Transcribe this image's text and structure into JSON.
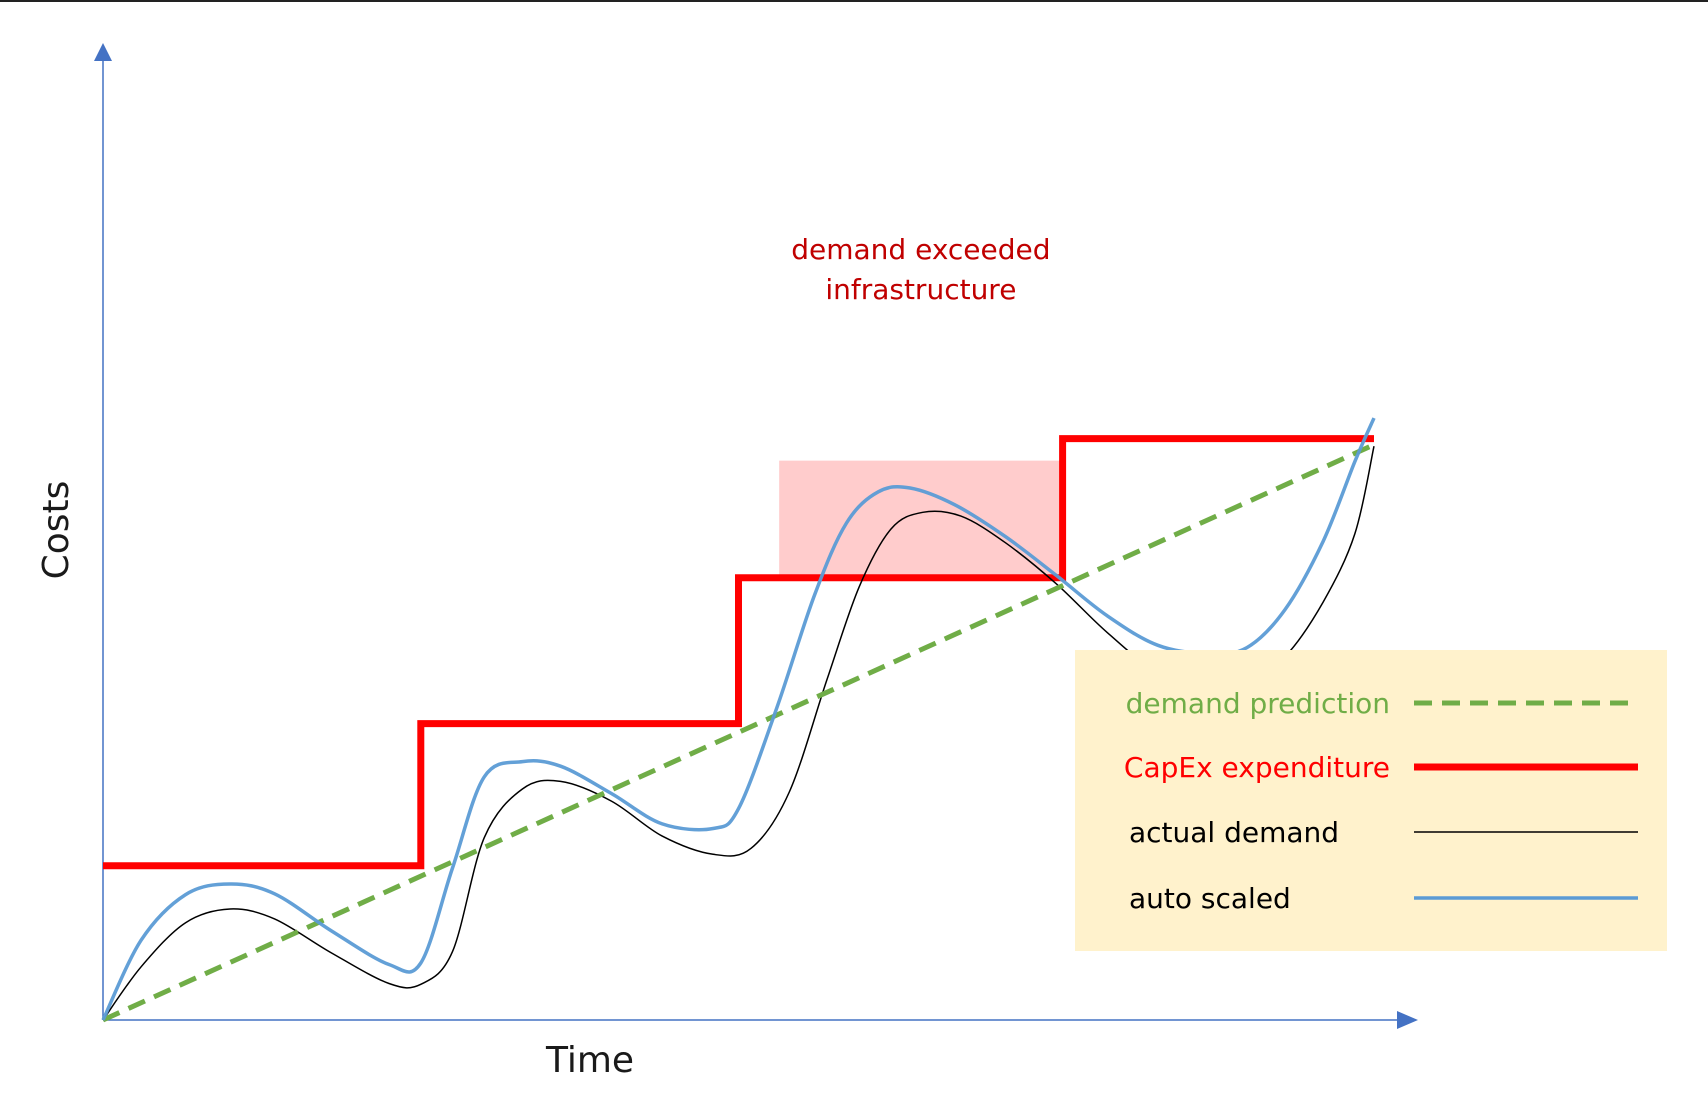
{
  "chart_data": {
    "type": "line",
    "title": "",
    "xlabel": "Time",
    "ylabel": "Costs",
    "xlim": [
      0,
      100
    ],
    "ylim": [
      0,
      100
    ],
    "grid": false,
    "legend_position": "bottom-right",
    "series": [
      {
        "name": "demand prediction",
        "color": "#70ad47",
        "style": "dashed",
        "points": [
          [
            0,
            0
          ],
          [
            100,
            75.7
          ]
        ]
      },
      {
        "name": "CapEx expenditure",
        "color": "#ff0000",
        "style": "step",
        "points": [
          [
            0,
            20.3
          ],
          [
            25,
            20.3
          ],
          [
            25,
            39
          ],
          [
            50,
            39
          ],
          [
            50,
            58.2
          ],
          [
            75.5,
            58.2
          ],
          [
            75.5,
            76.5
          ],
          [
            100,
            76.5
          ]
        ]
      },
      {
        "name": "actual demand",
        "color": "#000000",
        "style": "solid",
        "points": [
          [
            0,
            0
          ],
          [
            3,
            7
          ],
          [
            6.5,
            12.8
          ],
          [
            10,
            14.6
          ],
          [
            13.5,
            13.3
          ],
          [
            18,
            8.8
          ],
          [
            22.5,
            4.8
          ],
          [
            25,
            4.7
          ],
          [
            27.5,
            9
          ],
          [
            30,
            24
          ],
          [
            33,
            30.4
          ],
          [
            36,
            31.4
          ],
          [
            40,
            28.8
          ],
          [
            44,
            24.2
          ],
          [
            48,
            21.8
          ],
          [
            51,
            22.6
          ],
          [
            54,
            30
          ],
          [
            57,
            45
          ],
          [
            59.5,
            57
          ],
          [
            62,
            64.6
          ],
          [
            64.5,
            66.8
          ],
          [
            67.5,
            66.3
          ],
          [
            71,
            62.8
          ],
          [
            75,
            57.4
          ],
          [
            79,
            51
          ],
          [
            83,
            45.8
          ],
          [
            87,
            44.4
          ],
          [
            90,
            44.4
          ],
          [
            93,
            47.8
          ],
          [
            96,
            55
          ],
          [
            98.5,
            64
          ],
          [
            100,
            75.5
          ]
        ]
      },
      {
        "name": "auto scaled",
        "color": "#5b9bd5",
        "style": "solid",
        "points": [
          [
            0,
            0
          ],
          [
            3,
            10.5
          ],
          [
            6.5,
            16.5
          ],
          [
            10,
            17.9
          ],
          [
            13.5,
            16.6
          ],
          [
            18,
            11.7
          ],
          [
            22.5,
            7.3
          ],
          [
            25,
            7.5
          ],
          [
            27.5,
            20
          ],
          [
            30,
            32
          ],
          [
            33,
            34
          ],
          [
            36,
            33.4
          ],
          [
            40,
            29.8
          ],
          [
            44,
            25.8
          ],
          [
            48,
            25.2
          ],
          [
            50,
            27.8
          ],
          [
            53,
            41
          ],
          [
            56,
            56
          ],
          [
            58.5,
            65.4
          ],
          [
            61,
            69.5
          ],
          [
            63.5,
            70
          ],
          [
            67,
            67.8
          ],
          [
            71,
            63.6
          ],
          [
            75,
            58.5
          ],
          [
            79,
            53.2
          ],
          [
            83,
            49.3
          ],
          [
            87,
            48.2
          ],
          [
            90,
            49
          ],
          [
            93,
            54
          ],
          [
            96,
            63
          ],
          [
            98.5,
            73.5
          ],
          [
            100,
            79.2
          ]
        ]
      }
    ],
    "annotations": [
      {
        "lines": [
          "demand exceeded",
          "infrastructure"
        ],
        "color": "#c00000",
        "x_range": [
          53.2,
          75.5
        ],
        "y_range": [
          58.2,
          73.6
        ],
        "highlight_color": "#ffc7c7"
      }
    ]
  },
  "colors": {
    "axis": "#4472c4",
    "legend_background": "#fff2cc",
    "axis_title": "#1a1a1a",
    "annotation_text": "#c00000",
    "annotation_highlight": "#ffc7c7",
    "top_rule": "#222222"
  }
}
